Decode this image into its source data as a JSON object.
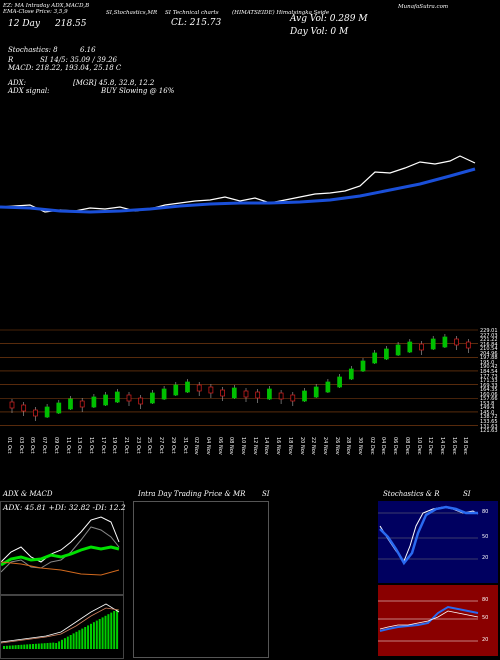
{
  "header": {
    "studies_labels": "EZ: MA Intraday ADX,MACD,B",
    "ema_label": "EMA-Close Price: 3,5,9",
    "si_stochastics": "SI,Stochastics,MR",
    "si_tech": "SI Technical charts",
    "symbol_title": "(HIMATSEIDE) Himatsingka Seide",
    "munafa": "MunafaSutra.com",
    "date_close_label": "12 Day",
    "close_price_left": "218.55",
    "close_label": "CL: 215.73",
    "avg_vol": "Avg Vol: 0.289 M",
    "day_vol": "Day Vol: 0   M"
  },
  "indicators": {
    "stochastics": "Stochastics: 8",
    "stoch_val": "6.16",
    "stoch_r": "R",
    "si_line": "SI 14/5: 35.09 / 39.26",
    "macd": "MACD: 218.22, 193.04, 25.18  C",
    "adx": "ADX:",
    "adx_values": "[MGR] 45.8, 32.8, 12.2",
    "adx_signal": "ADX  signal:",
    "buy_signal": "BUY Slowing @ 16%"
  },
  "price_labels": [
    "229.01",
    "227.03",
    "221.22",
    "216.84",
    "210.54",
    "204.96",
    "197.88",
    "195.0",
    "190.42",
    "184.54",
    "177.73",
    "171.33",
    "169.33",
    "164.35",
    "160.06",
    "157.66",
    "153.8",
    "149.4",
    "145.0",
    "138.72",
    "133.65",
    "131.63",
    "121.63"
  ],
  "dates": [
    "01 Oct",
    "03 Oct",
    "05 Oct",
    "07 Oct",
    "09 Oct",
    "11 Oct",
    "13 Oct",
    "15 Oct",
    "17 Oct",
    "19 Oct",
    "21 Oct",
    "23 Oct",
    "25 Oct",
    "27 Oct",
    "29 Oct",
    "31 Oct",
    "02 Nov",
    "04 Nov",
    "06 Nov",
    "08 Nov",
    "10 Nov",
    "12 Nov",
    "14 Nov",
    "16 Nov",
    "18 Nov",
    "20 Nov",
    "22 Nov",
    "24 Nov",
    "26 Nov",
    "28 Nov",
    "30 Nov",
    "02 Dec",
    "04 Dec",
    "06 Dec",
    "08 Dec",
    "10 Dec",
    "12 Dec",
    "14 Dec",
    "16 Dec",
    "18 Dec"
  ],
  "panels": {
    "adx_macd": {
      "title": "ADX  & MACD",
      "legend": "ADX: 45.81  +DI: 32.82  -DI: 12.2"
    },
    "intraday": {
      "title": "Intra Day Trading Price  & MR",
      "suffix": "SI"
    },
    "stoch": {
      "title": "Stochastics & R",
      "suffix": "SI",
      "ticks": [
        "80",
        "50",
        "20"
      ],
      "si_ticks": [
        "80",
        "50",
        "20"
      ]
    }
  },
  "colors": {
    "ema": "#1a4fd8",
    "up": "#00c000",
    "down": "#e02020",
    "stoch_bg": "#000060",
    "si_bg": "#8a0000"
  }
}
